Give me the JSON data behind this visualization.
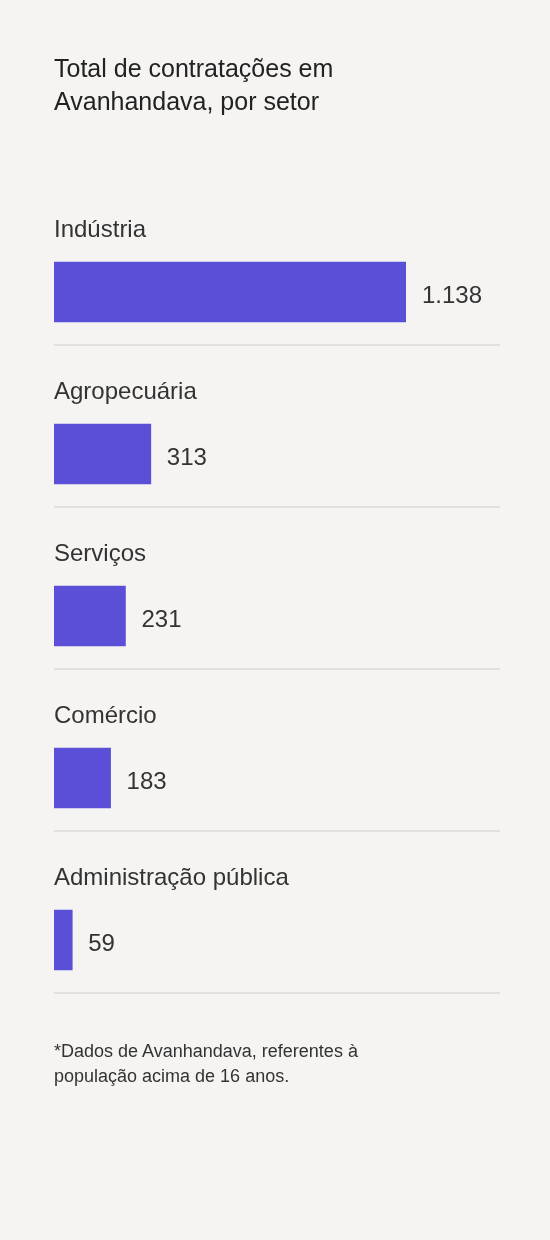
{
  "chart_data": {
    "type": "bar",
    "orientation": "horizontal",
    "title": "Total de contratações em Avanhandava, por setor",
    "categories": [
      "Indústria",
      "Agropecuária",
      "Serviços",
      "Comércio",
      "Administração pública"
    ],
    "values": [
      1138,
      313,
      231,
      183,
      59
    ],
    "value_labels": [
      "1.138",
      "313",
      "231",
      "183",
      "59"
    ],
    "color": "#5a4fd6",
    "legend": false,
    "tick_labels": false,
    "annotations": [
      "*Dados de Avanhandava, referentes à população acima de 16 anos."
    ]
  }
}
